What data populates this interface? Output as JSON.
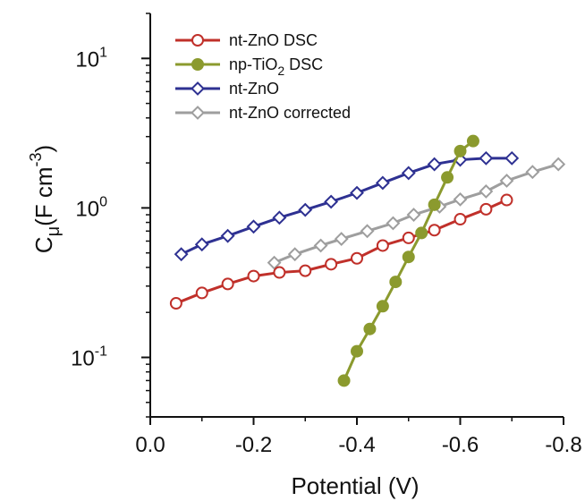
{
  "chart_data": {
    "type": "scatter",
    "xlabel": "Potential (V)",
    "ylabel_main": "C",
    "ylabel_sub": "μ",
    "ylabel_unit": "(F cm",
    "ylabel_exp": "-3",
    "ylabel_close": ")",
    "xlim": [
      0.0,
      -0.8
    ],
    "ylim": [
      0.04,
      20
    ],
    "yscale": "log",
    "grid": false,
    "legend_position": "top-left",
    "x_ticks": [
      {
        "value": 0.0,
        "label": "0.0"
      },
      {
        "value": -0.2,
        "label": "-0.2"
      },
      {
        "value": -0.4,
        "label": "-0.4"
      },
      {
        "value": -0.6,
        "label": "-0.6"
      },
      {
        "value": -0.8,
        "label": "-0.8"
      }
    ],
    "y_ticks": [
      {
        "value": 0.1,
        "base": "10",
        "exp": "-1"
      },
      {
        "value": 1,
        "base": "10",
        "exp": "0"
      },
      {
        "value": 10,
        "base": "10",
        "exp": "1"
      }
    ],
    "series": [
      {
        "name": "nt-ZnO DSC",
        "name_main": "nt-ZnO DSC",
        "name_sub": "",
        "name_tail": "",
        "color": "#c0302a",
        "marker": "circle-open",
        "x": [
          -0.05,
          -0.1,
          -0.15,
          -0.2,
          -0.25,
          -0.3,
          -0.35,
          -0.4,
          -0.45,
          -0.5,
          -0.55,
          -0.6,
          -0.65,
          -0.69
        ],
        "y": [
          0.23,
          0.27,
          0.31,
          0.35,
          0.37,
          0.38,
          0.42,
          0.46,
          0.56,
          0.63,
          0.71,
          0.84,
          0.98,
          1.13
        ]
      },
      {
        "name": "np-TiO2 DSC",
        "name_main": "np-TiO",
        "name_sub": "2",
        "name_tail": " DSC",
        "color": "#8b9a2e",
        "marker": "circle-filled",
        "x": [
          -0.375,
          -0.4,
          -0.425,
          -0.45,
          -0.475,
          -0.5,
          -0.525,
          -0.55,
          -0.575,
          -0.6,
          -0.625
        ],
        "y": [
          0.07,
          0.11,
          0.155,
          0.22,
          0.32,
          0.47,
          0.68,
          1.05,
          1.6,
          2.4,
          2.8
        ]
      },
      {
        "name": "nt-ZnO",
        "name_main": "nt-ZnO",
        "name_sub": "",
        "name_tail": "",
        "color": "#2e3192",
        "marker": "diamond-open",
        "x": [
          -0.06,
          -0.1,
          -0.15,
          -0.2,
          -0.25,
          -0.3,
          -0.35,
          -0.4,
          -0.45,
          -0.5,
          -0.55,
          -0.6,
          -0.65,
          -0.7
        ],
        "y": [
          0.49,
          0.57,
          0.65,
          0.75,
          0.86,
          0.97,
          1.1,
          1.26,
          1.47,
          1.71,
          1.96,
          2.1,
          2.15,
          2.15
        ]
      },
      {
        "name": "nt-ZnO corrected",
        "name_main": "nt-ZnO corrected",
        "name_sub": "",
        "name_tail": "",
        "color": "#9e9e9e",
        "marker": "diamond-open",
        "x": [
          -0.24,
          -0.28,
          -0.33,
          -0.37,
          -0.42,
          -0.47,
          -0.51,
          -0.56,
          -0.6,
          -0.65,
          -0.69,
          -0.74,
          -0.79
        ],
        "y": [
          0.43,
          0.49,
          0.56,
          0.62,
          0.7,
          0.79,
          0.9,
          1.02,
          1.14,
          1.29,
          1.52,
          1.74,
          1.96
        ]
      }
    ]
  }
}
